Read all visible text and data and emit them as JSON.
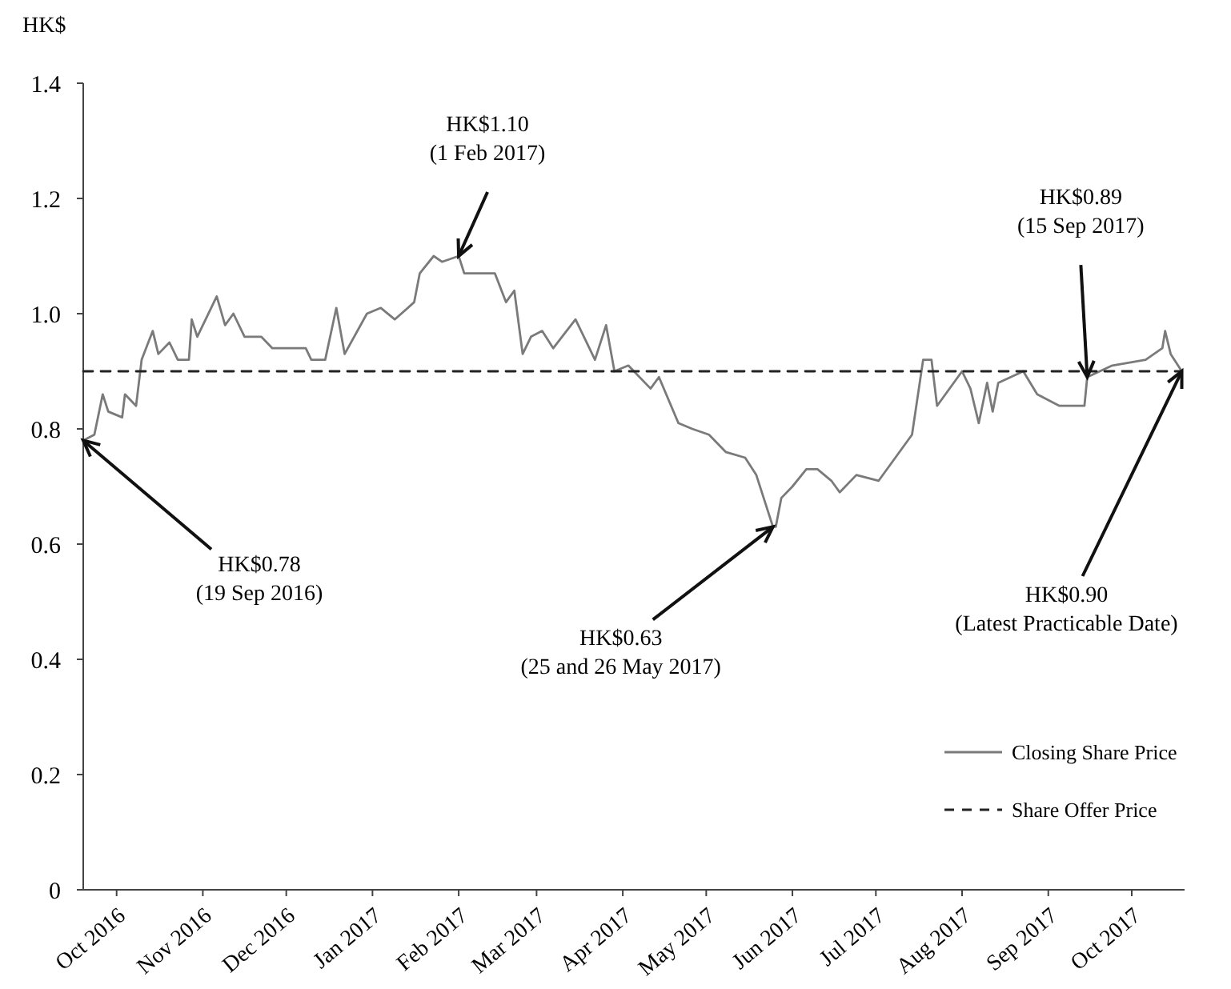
{
  "chart_data": {
    "type": "line",
    "ylabel": "HK$",
    "xlim": [
      "2016-09-19",
      "2017-10-20"
    ],
    "xticks": [
      {
        "value": "2016-10-01",
        "label": "Oct 2016"
      },
      {
        "value": "2016-11-01",
        "label": "Nov 2016"
      },
      {
        "value": "2016-12-01",
        "label": "Dec 2016"
      },
      {
        "value": "2017-01-01",
        "label": "Jan 2017"
      },
      {
        "value": "2017-02-01",
        "label": "Feb 2017"
      },
      {
        "value": "2017-03-01",
        "label": "Mar 2017"
      },
      {
        "value": "2017-04-01",
        "label": "Apr 2017"
      },
      {
        "value": "2017-05-01",
        "label": "May 2017"
      },
      {
        "value": "2017-06-01",
        "label": "Jun 2017"
      },
      {
        "value": "2017-07-01",
        "label": "Jul 2017"
      },
      {
        "value": "2017-08-01",
        "label": "Aug 2017"
      },
      {
        "value": "2017-09-01",
        "label": "Sep 2017"
      },
      {
        "value": "2017-10-01",
        "label": "Oct 2017"
      }
    ],
    "ylim": [
      0,
      1.4
    ],
    "yticks": [
      0,
      {
        "value": 0.2,
        "label": "0.2"
      },
      {
        "value": 0.4,
        "label": "0.4"
      },
      {
        "value": 0.6,
        "label": "0.6"
      },
      {
        "value": 0.8,
        "label": "0.8"
      },
      {
        "value": 1,
        "label": "1.0"
      },
      {
        "value": 1.2,
        "label": "1.2"
      },
      {
        "value": 1.4,
        "label": "1.4"
      }
    ],
    "grid": false,
    "legend": "bottom right",
    "series": [
      {
        "name": "Closing Share Price",
        "color": "#7a7a7a",
        "line_style": "solid",
        "x": [
          "2016-09-19",
          "2016-09-23",
          "2016-09-26",
          "2016-09-28",
          "2016-10-03",
          "2016-10-04",
          "2016-10-08",
          "2016-10-10",
          "2016-10-14",
          "2016-10-16",
          "2016-10-20",
          "2016-10-23",
          "2016-10-27",
          "2016-10-28",
          "2016-10-30",
          "2016-11-06",
          "2016-11-09",
          "2016-11-12",
          "2016-11-16",
          "2016-11-22",
          "2016-11-26",
          "2016-12-08",
          "2016-12-10",
          "2016-12-15",
          "2016-12-19",
          "2016-12-22",
          "2016-12-30",
          "2017-01-04",
          "2017-01-09",
          "2017-01-16",
          "2017-01-18",
          "2017-01-23",
          "2017-01-26",
          "2017-02-01",
          "2017-02-03",
          "2017-02-06",
          "2017-02-14",
          "2017-02-18",
          "2017-02-21",
          "2017-02-24",
          "2017-02-27",
          "2017-03-03",
          "2017-03-07",
          "2017-03-15",
          "2017-03-20",
          "2017-03-22",
          "2017-03-26",
          "2017-03-29",
          "2017-04-03",
          "2017-04-11",
          "2017-04-14",
          "2017-04-21",
          "2017-04-26",
          "2017-05-02",
          "2017-05-08",
          "2017-05-15",
          "2017-05-19",
          "2017-05-25",
          "2017-05-26",
          "2017-05-28",
          "2017-06-01",
          "2017-06-06",
          "2017-06-10",
          "2017-06-15",
          "2017-06-18",
          "2017-06-24",
          "2017-07-02",
          "2017-07-08",
          "2017-07-14",
          "2017-07-18",
          "2017-07-21",
          "2017-07-23",
          "2017-08-01",
          "2017-08-04",
          "2017-08-07",
          "2017-08-10",
          "2017-08-12",
          "2017-08-14",
          "2017-08-23",
          "2017-08-28",
          "2017-09-05",
          "2017-09-10",
          "2017-09-14",
          "2017-09-15",
          "2017-09-24",
          "2017-10-06",
          "2017-10-12",
          "2017-10-13",
          "2017-10-15",
          "2017-10-19"
        ],
        "values": [
          0.78,
          0.79,
          0.86,
          0.83,
          0.82,
          0.86,
          0.84,
          0.92,
          0.97,
          0.93,
          0.95,
          0.92,
          0.92,
          0.99,
          0.96,
          1.03,
          0.98,
          1.0,
          0.96,
          0.96,
          0.94,
          0.94,
          0.92,
          0.92,
          1.01,
          0.93,
          1.0,
          1.01,
          0.99,
          1.02,
          1.07,
          1.1,
          1.09,
          1.1,
          1.07,
          1.07,
          1.07,
          1.02,
          1.04,
          0.93,
          0.96,
          0.97,
          0.94,
          0.99,
          0.94,
          0.92,
          0.98,
          0.9,
          0.91,
          0.87,
          0.89,
          0.81,
          0.8,
          0.79,
          0.76,
          0.75,
          0.72,
          0.63,
          0.63,
          0.68,
          0.7,
          0.73,
          0.73,
          0.71,
          0.69,
          0.72,
          0.71,
          0.75,
          0.79,
          0.92,
          0.92,
          0.84,
          0.9,
          0.87,
          0.81,
          0.88,
          0.83,
          0.88,
          0.9,
          0.86,
          0.84,
          0.84,
          0.84,
          0.89,
          0.91,
          0.92,
          0.94,
          0.97,
          0.93,
          0.9
        ]
      },
      {
        "name": "Share Offer Price",
        "color": "#222222",
        "line_style": "dashed",
        "x": [
          "2016-09-19",
          "2017-10-19"
        ],
        "values": [
          0.9,
          0.9
        ]
      }
    ],
    "annotations": [
      {
        "text": "HK$0.78\n(19 Sep 2016)",
        "x": "2016-09-19",
        "y": 0.78
      },
      {
        "text": "HK$1.10\n(1 Feb 2017)",
        "x": "2017-02-01",
        "y": 1.1
      },
      {
        "text": "HK$0.63\n(25 and 26 May 2017)",
        "x": "2017-05-25",
        "y": 0.63
      },
      {
        "text": "HK$0.89\n(15 Sep 2017)",
        "x": "2017-09-15",
        "y": 0.89
      },
      {
        "text": "HK$0.90\n(Latest Practicable Date)",
        "x": "2017-10-19",
        "y": 0.9
      }
    ]
  }
}
